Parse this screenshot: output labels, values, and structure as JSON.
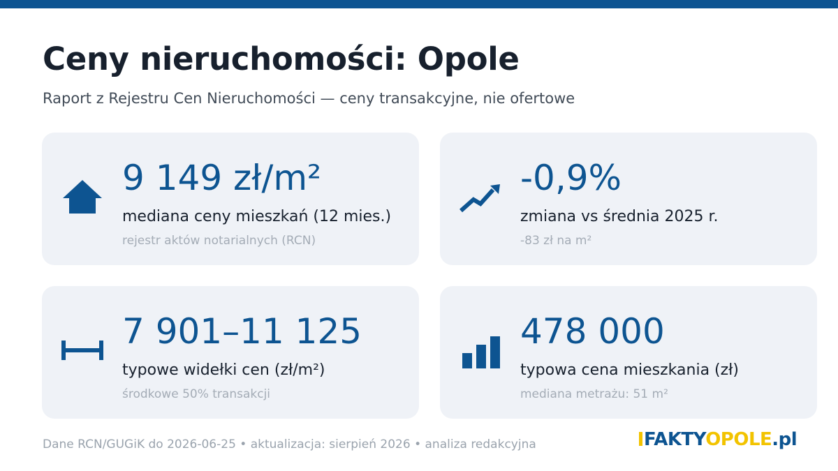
{
  "header": {
    "title": "Ceny nieruchomości: Opole",
    "subtitle": "Raport z Rejestru Cen Nieruchomości — ceny transakcyjne, nie ofertowe"
  },
  "cards": [
    {
      "icon": "house-icon",
      "value": "9 149 zł/m²",
      "label": "mediana ceny mieszkań (12 mies.)",
      "note": "rejestr aktów notarialnych (RCN)"
    },
    {
      "icon": "trend-up-icon",
      "value": "-0,9%",
      "label": "zmiana vs średnia 2025 r.",
      "note": "-83 zł na m²"
    },
    {
      "icon": "range-icon",
      "value": "7 901–11 125",
      "label": "typowe widełki cen (zł/m²)",
      "note": "środkowe 50% transakcji"
    },
    {
      "icon": "bar-chart-icon",
      "value": "478 000",
      "label": "typowa cena mieszkania (zł)",
      "note": "mediana metrażu: 51 m²"
    }
  ],
  "footer": {
    "text": "Dane RCN/GUGiK do 2026-06-25 • aktualizacja: sierpień 2026 • analiza redakcyjna"
  },
  "logo": {
    "part1": "FAKTY",
    "part2": "OPOLE",
    "part3": ".pl"
  },
  "colors": {
    "accent": "#0d5491",
    "logo_yellow": "#f2c300",
    "card_bg": "#eff2f7",
    "title": "#17202d"
  }
}
